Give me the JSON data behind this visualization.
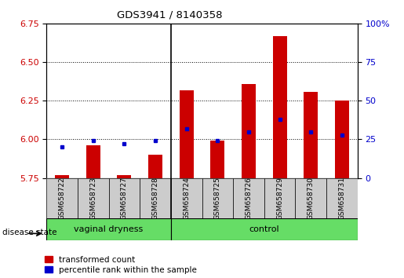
{
  "title": "GDS3941 / 8140358",
  "samples": [
    "GSM658722",
    "GSM658723",
    "GSM658727",
    "GSM658728",
    "GSM658724",
    "GSM658725",
    "GSM658726",
    "GSM658729",
    "GSM658730",
    "GSM658731"
  ],
  "group_boundary": 3,
  "red_values": [
    5.77,
    5.96,
    5.77,
    5.9,
    6.32,
    5.99,
    6.36,
    6.67,
    6.31,
    6.25
  ],
  "blue_values": [
    20,
    24,
    22,
    24,
    32,
    24,
    30,
    38,
    30,
    28
  ],
  "ylim_left": [
    5.75,
    6.75
  ],
  "ylim_right": [
    0,
    100
  ],
  "yticks_left": [
    5.75,
    6.0,
    6.25,
    6.5,
    6.75
  ],
  "yticks_right": [
    0,
    25,
    50,
    75,
    100
  ],
  "bar_color": "#cc0000",
  "dot_color": "#0000cc",
  "bar_bottom": 5.75,
  "grid_lines": [
    6.0,
    6.25,
    6.5
  ],
  "group_bg": "#66dd66",
  "sample_bg": "#cccccc",
  "legend_items": [
    "transformed count",
    "percentile rank within the sample"
  ],
  "legend_colors": [
    "#cc0000",
    "#0000cc"
  ],
  "group1_label": "vaginal dryness",
  "group2_label": "control",
  "disease_state_label": "disease state",
  "bar_width": 0.45
}
